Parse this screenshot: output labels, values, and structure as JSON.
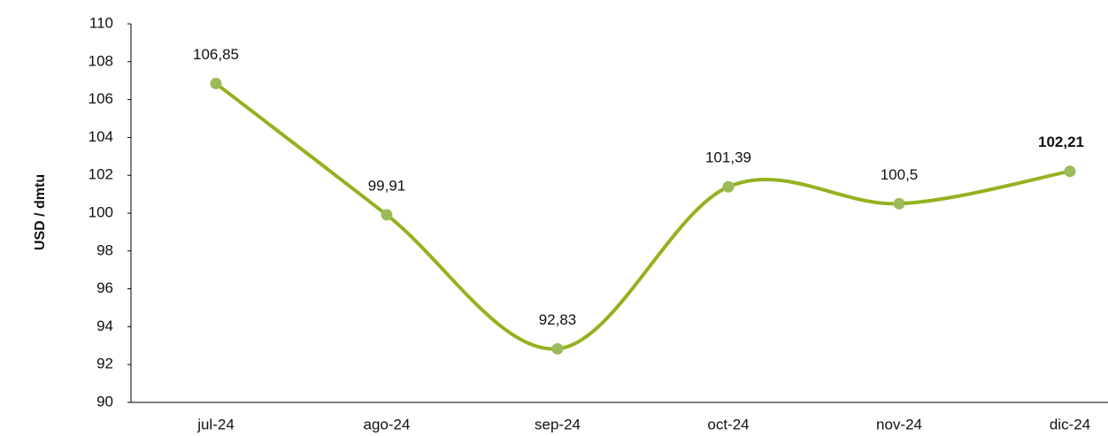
{
  "chart_data": {
    "type": "line",
    "y_label": "USD / dmtu",
    "categories": [
      "jul-24",
      "ago-24",
      "sep-24",
      "oct-24",
      "nov-24",
      "dic-24"
    ],
    "series": [
      {
        "name": "USD / dmtu",
        "color": "#93b21f",
        "marker_color": "#9bbb59",
        "values": [
          106.85,
          99.91,
          92.83,
          101.39,
          100.5,
          102.21
        ],
        "value_labels": [
          "106,85",
          "99,91",
          "92,83",
          "101,39",
          "100,5",
          "102,21"
        ]
      }
    ],
    "ylim": [
      90,
      110
    ],
    "yticks": [
      90,
      92,
      94,
      96,
      98,
      100,
      102,
      104,
      106,
      108,
      110
    ],
    "grid": false,
    "smooth": true
  }
}
